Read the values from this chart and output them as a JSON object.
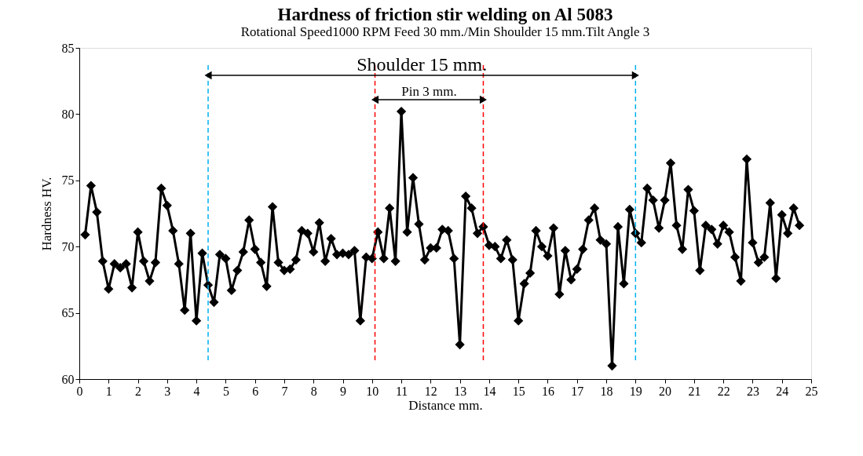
{
  "chart_data": {
    "type": "line",
    "title": "Hardness of friction stir welding on Al 5083",
    "subtitle": "Rotational Speed1000 RPM Feed 30 mm./Min Shoulder 15 mm.Tilt Angle 3",
    "xlabel": "Distance mm.",
    "ylabel": "Hardness HV.",
    "x": [
      0.2,
      0.4,
      0.6,
      0.8,
      1.0,
      1.2,
      1.4,
      1.6,
      1.8,
      2.0,
      2.2,
      2.4,
      2.6,
      2.8,
      3.0,
      3.2,
      3.4,
      3.6,
      3.8,
      4.0,
      4.2,
      4.4,
      4.6,
      4.8,
      5.0,
      5.2,
      5.4,
      5.6,
      5.8,
      6.0,
      6.2,
      6.4,
      6.6,
      6.8,
      7.0,
      7.2,
      7.4,
      7.6,
      7.8,
      8.0,
      8.2,
      8.4,
      8.6,
      8.8,
      9.0,
      9.2,
      9.4,
      9.6,
      9.8,
      10.0,
      10.2,
      10.4,
      10.6,
      10.8,
      11.0,
      11.2,
      11.4,
      11.6,
      11.8,
      12.0,
      12.2,
      12.4,
      12.6,
      12.8,
      13.0,
      13.2,
      13.4,
      13.6,
      13.8,
      14.0,
      14.2,
      14.4,
      14.6,
      14.8,
      15.0,
      15.2,
      15.4,
      15.6,
      15.8,
      16.0,
      16.2,
      16.4,
      16.6,
      16.8,
      17.0,
      17.2,
      17.4,
      17.6,
      17.8,
      18.0,
      18.2,
      18.4,
      18.6,
      18.8,
      19.0,
      19.2,
      19.4,
      19.6,
      19.8,
      20.0,
      20.2,
      20.4,
      20.6,
      20.8,
      21.0,
      21.2,
      21.4,
      21.6,
      21.8,
      22.0,
      22.2,
      22.4,
      22.6,
      22.8,
      23.0,
      23.2,
      23.4,
      23.6,
      23.8,
      24.0,
      24.2,
      24.4,
      24.6
    ],
    "series": [
      {
        "color": "#000000",
        "values": [
          70.9,
          74.6,
          72.6,
          68.9,
          66.8,
          68.7,
          68.4,
          68.7,
          66.9,
          71.1,
          68.9,
          67.4,
          68.8,
          74.4,
          73.1,
          71.2,
          68.7,
          65.2,
          71.0,
          64.4,
          69.5,
          67.1,
          65.8,
          69.4,
          69.1,
          66.7,
          68.2,
          69.6,
          72.0,
          69.8,
          68.8,
          67.0,
          73.0,
          68.8,
          68.2,
          68.3,
          69.0,
          71.2,
          71.0,
          69.6,
          71.8,
          68.9,
          70.6,
          69.4,
          69.5,
          69.4,
          69.7,
          64.4,
          69.2,
          69.1,
          71.1,
          69.1,
          72.9,
          68.9,
          80.2,
          71.1,
          75.2,
          71.7,
          69.0,
          69.9,
          69.9,
          71.3,
          71.2,
          69.1,
          62.6,
          73.8,
          72.9,
          71.0,
          71.5,
          70.1,
          70.0,
          69.1,
          70.5,
          69.0,
          64.4,
          67.2,
          68.0,
          71.2,
          70.0,
          69.3,
          71.4,
          66.4,
          69.7,
          67.5,
          68.3,
          69.8,
          72.0,
          72.9,
          70.5,
          70.2,
          61.0,
          71.5,
          67.2,
          72.8,
          71.0,
          70.3,
          74.4,
          73.5,
          71.4,
          73.5,
          76.3,
          71.6,
          69.8,
          74.3,
          72.7,
          68.2,
          71.6,
          71.3,
          70.2,
          71.6,
          71.1,
          69.2,
          67.4,
          76.6,
          70.3,
          68.8,
          69.2,
          73.3,
          67.6,
          72.4,
          71.0,
          72.9,
          71.6
        ]
      }
    ],
    "xlim": [
      0,
      25
    ],
    "xticks": [
      0,
      1,
      2,
      3,
      4,
      5,
      6,
      7,
      8,
      9,
      10,
      11,
      12,
      13,
      14,
      15,
      16,
      17,
      18,
      19,
      20,
      21,
      22,
      23,
      24,
      25
    ],
    "ylim": [
      60,
      85
    ],
    "yticks": [
      60,
      65,
      70,
      75,
      80,
      85
    ],
    "ref_lines": [
      {
        "axis": "x",
        "value": 4.4,
        "color": "#00b0f0",
        "line_style": "dashed"
      },
      {
        "axis": "x",
        "value": 10.1,
        "color": "#ff0000",
        "line_style": "dashed"
      },
      {
        "axis": "x",
        "value": 13.8,
        "color": "#ff0000",
        "line_style": "dashed"
      },
      {
        "axis": "x",
        "value": 19.0,
        "color": "#00b0f0",
        "line_style": "dashed"
      }
    ],
    "annotations": [
      "Shoulder 15 mm.",
      "Pin 3 mm."
    ],
    "marker": "diamond",
    "line_style": "solid",
    "grid": false
  }
}
